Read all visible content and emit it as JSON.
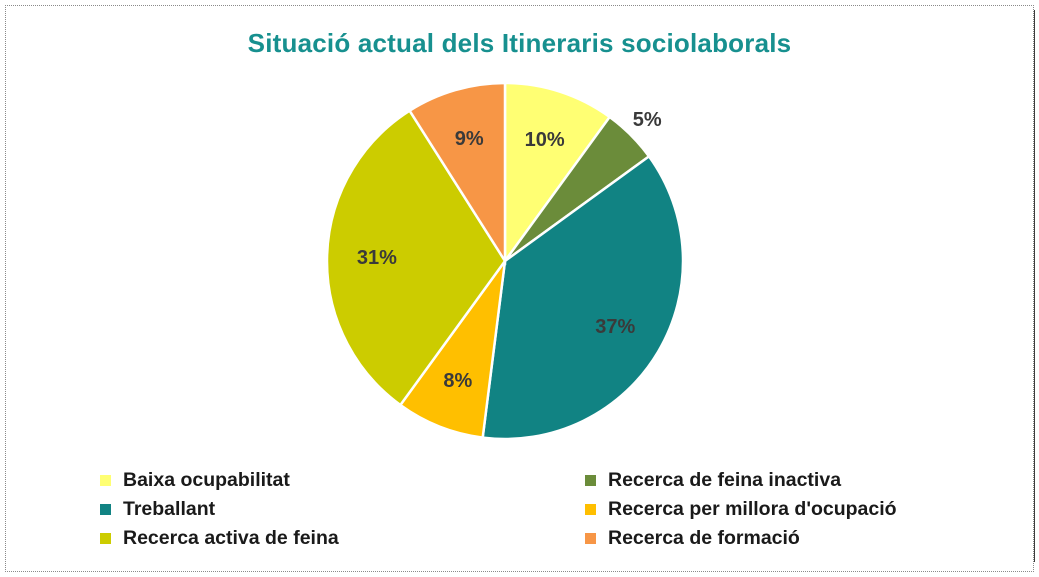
{
  "chart_data": {
    "type": "pie",
    "title": "Situació actual dels Itineraris sociolaborals",
    "categories": [
      "Baixa ocupabilitat",
      "Recerca de feina inactiva",
      "Treballant",
      "Recerca per millora d'ocupació",
      "Recerca activa de feina",
      "Recerca de formació"
    ],
    "values": [
      10,
      5,
      37,
      8,
      31,
      9
    ],
    "labels": [
      "10%",
      "5%",
      "37%",
      "8%",
      "31%",
      "9%"
    ],
    "colors": [
      "#ffff73",
      "#6b8c3a",
      "#118383",
      "#ffbf00",
      "#cccc00",
      "#f79646"
    ],
    "label_colors": [
      "#3a3a3a",
      "#3a3a3a",
      "#3a3a3a",
      "#3a3a3a",
      "#3a3a3a",
      "#3a3a3a"
    ],
    "legend_position": "bottom"
  }
}
